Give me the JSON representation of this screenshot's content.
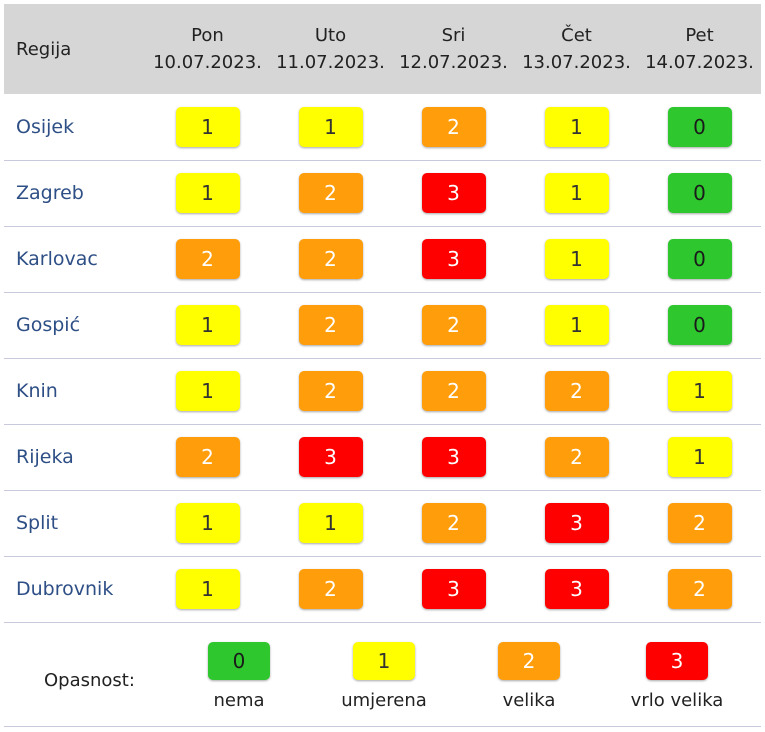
{
  "header": {
    "region_label": "Regija",
    "days": [
      {
        "day": "Pon",
        "date": "10.07.2023."
      },
      {
        "day": "Uto",
        "date": "11.07.2023."
      },
      {
        "day": "Sri",
        "date": "12.07.2023."
      },
      {
        "day": "Čet",
        "date": "13.07.2023."
      },
      {
        "day": "Pet",
        "date": "14.07.2023."
      }
    ]
  },
  "rows": [
    {
      "region": "Osijek",
      "levels": [
        "1",
        "1",
        "2",
        "1",
        "0"
      ]
    },
    {
      "region": "Zagreb",
      "levels": [
        "1",
        "2",
        "3",
        "1",
        "0"
      ]
    },
    {
      "region": "Karlovac",
      "levels": [
        "2",
        "2",
        "3",
        "1",
        "0"
      ]
    },
    {
      "region": "Gospić",
      "levels": [
        "1",
        "2",
        "2",
        "1",
        "0"
      ]
    },
    {
      "region": "Knin",
      "levels": [
        "1",
        "2",
        "2",
        "2",
        "1"
      ]
    },
    {
      "region": "Rijeka",
      "levels": [
        "2",
        "3",
        "3",
        "2",
        "1"
      ]
    },
    {
      "region": "Split",
      "levels": [
        "1",
        "1",
        "2",
        "3",
        "2"
      ]
    },
    {
      "region": "Dubrovnik",
      "levels": [
        "1",
        "2",
        "3",
        "3",
        "2"
      ]
    }
  ],
  "legend": {
    "title": "Opasnost:",
    "items": [
      {
        "value": "0",
        "label": "nema"
      },
      {
        "value": "1",
        "label": "umjerena"
      },
      {
        "value": "2",
        "label": "velika"
      },
      {
        "value": "3",
        "label": "vrlo velika"
      }
    ]
  },
  "colors": {
    "level_0": "#2ec72e",
    "level_1": "#ffff00",
    "level_2": "#ff9d0a",
    "level_3": "#ff0000",
    "header_bg": "#d6d6d6",
    "region_text": "#2e4f86"
  }
}
